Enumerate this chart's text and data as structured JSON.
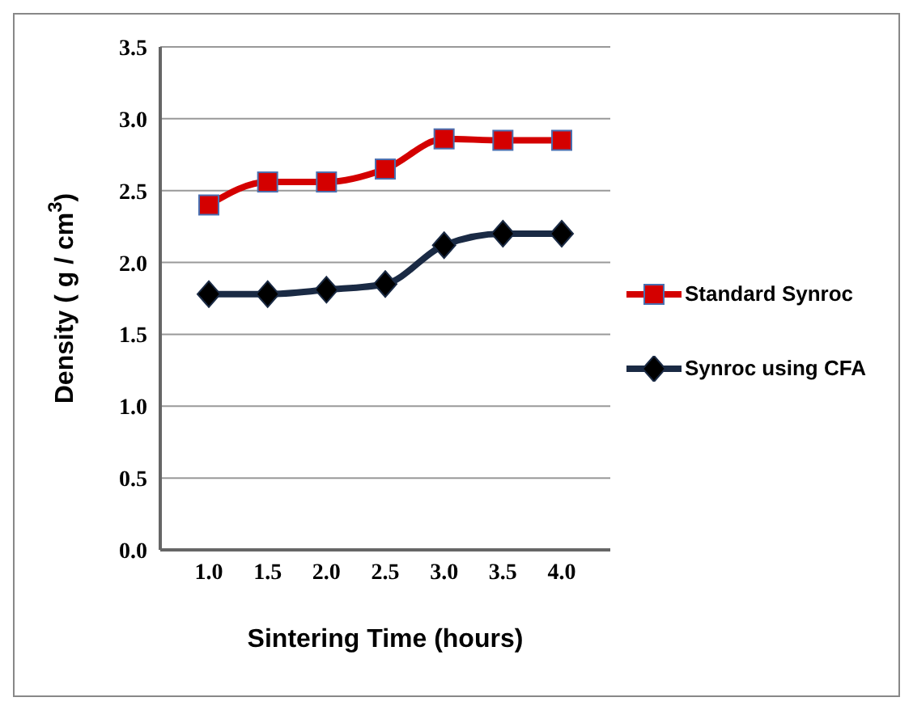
{
  "chart_data": {
    "type": "line",
    "xlabel": "Sintering Time  (hours)",
    "ylabel": "Density ( g / cm$^{3}$)",
    "categories": [
      "1.0",
      "1.5",
      "2.0",
      "2.5",
      "3.0",
      "3.5",
      "4.0"
    ],
    "series": [
      {
        "name": "Standard Synroc",
        "color": "#d40000",
        "marker": "square",
        "values": [
          2.4,
          2.56,
          2.56,
          2.65,
          2.86,
          2.85,
          2.85
        ]
      },
      {
        "name": "Synroc using CFA",
        "color": "#1a2a44",
        "marker": "diamond",
        "values": [
          1.78,
          1.78,
          1.81,
          1.85,
          2.12,
          2.2,
          2.2
        ]
      }
    ],
    "ylim": [
      0,
      3.5
    ],
    "yticks": [
      {
        "value": 0,
        "label": "0.0"
      },
      {
        "value": 0.5,
        "label": "0.5"
      },
      {
        "value": 1,
        "label": "1.0"
      },
      {
        "value": 1.5,
        "label": "1.5"
      },
      {
        "value": 2,
        "label": "2.0"
      },
      {
        "value": 2.5,
        "label": "2.5"
      },
      {
        "value": 3,
        "label": "3.0"
      },
      {
        "value": 3.5,
        "label": "3.5"
      }
    ],
    "grid": "y",
    "legend": "right"
  }
}
